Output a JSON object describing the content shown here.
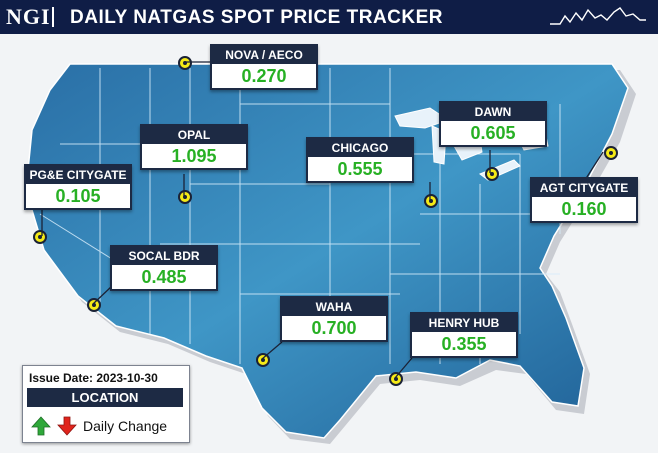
{
  "header": {
    "logo_text": "NGI",
    "title": "DAILY NATGAS SPOT PRICE TRACKER",
    "spark_icon": "price-sparkline-icon"
  },
  "colors": {
    "header_bg": "#0f1d46",
    "map_fill": "#3e94c4",
    "callout_header": "#1d2a44",
    "value_up": "#27b024",
    "value_down": "#e0241c",
    "marker": "#f5ea17"
  },
  "hubs": [
    {
      "id": "nova-aeco",
      "name": "NOVA / AECO",
      "price": "0.270",
      "change": "up"
    },
    {
      "id": "opal",
      "name": "OPAL",
      "price": "1.095",
      "change": "up"
    },
    {
      "id": "pge-citygate",
      "name": "PG&E CITYGATE",
      "price": "0.105",
      "change": "up"
    },
    {
      "id": "chicago",
      "name": "CHICAGO",
      "price": "0.555",
      "change": "up"
    },
    {
      "id": "dawn",
      "name": "DAWN",
      "price": "0.605",
      "change": "up"
    },
    {
      "id": "agt-citygate",
      "name": "AGT CITYGATE",
      "price": "0.160",
      "change": "up"
    },
    {
      "id": "socal-bdr",
      "name": "SOCAL BDR",
      "price": "0.485",
      "change": "up"
    },
    {
      "id": "waha",
      "name": "WAHA",
      "price": "0.700",
      "change": "up"
    },
    {
      "id": "henry-hub",
      "name": "HENRY HUB",
      "price": "0.355",
      "change": "up"
    }
  ],
  "legend": {
    "issue_date": "Issue Date: 2023-10-30",
    "location_label": "LOCATION",
    "change_label": "Daily Change",
    "up_icon": "green-up-arrow",
    "down_icon": "red-down-arrow"
  }
}
